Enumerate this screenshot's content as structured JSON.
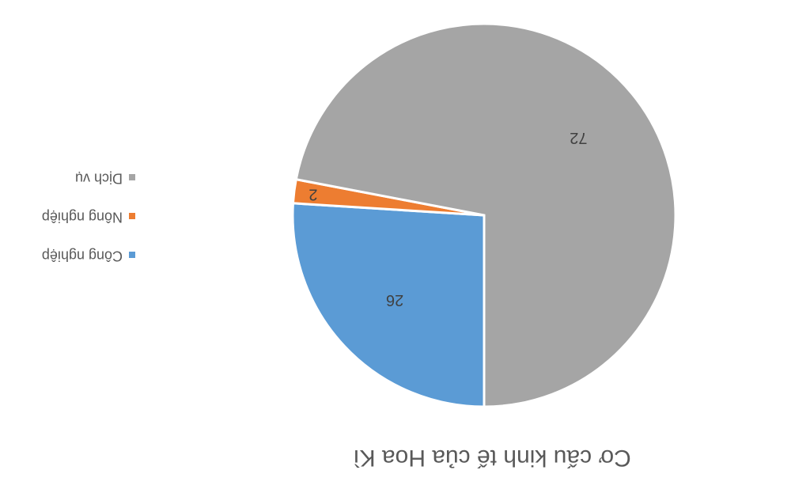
{
  "chart_data": {
    "type": "pie",
    "title": "Cơ cấu kinh tế của Hoa Kì",
    "categories": [
      "Công nghiệp",
      "Nông nghiệp",
      "Dịch vụ"
    ],
    "values": [
      26,
      2,
      72
    ],
    "colors": [
      "#5b9bd5",
      "#ed7d31",
      "#a5a5a5"
    ],
    "legend": "right"
  }
}
